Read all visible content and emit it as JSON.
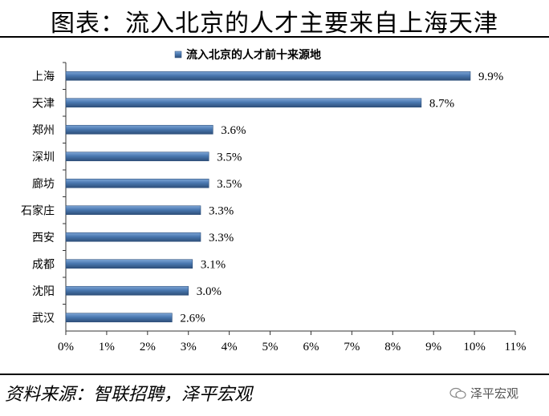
{
  "page_title": "图表：流入北京的人才主要来自上海天津",
  "source_note": "资料来源：智联招聘，泽平宏观",
  "watermark_text": "泽平宏观",
  "chart_data": {
    "type": "bar",
    "orientation": "horizontal",
    "title": "",
    "legend": {
      "entries": [
        "流入北京的人才前十来源地"
      ],
      "placement": "top-center"
    },
    "categories": [
      "上海",
      "天津",
      "郑州",
      "深圳",
      "廊坊",
      "石家庄",
      "西安",
      "成都",
      "沈阳",
      "武汉"
    ],
    "series": [
      {
        "name": "流入北京的人才前十来源地",
        "values": [
          9.9,
          8.7,
          3.6,
          3.5,
          3.5,
          3.3,
          3.3,
          3.1,
          3.0,
          2.6
        ],
        "data_labels": [
          "9.9%",
          "8.7%",
          "3.6%",
          "3.5%",
          "3.5%",
          "3.3%",
          "3.3%",
          "3.1%",
          "3.0%",
          "2.6%"
        ]
      }
    ],
    "xlim": [
      0,
      11
    ],
    "xticks": [
      "0%",
      "1%",
      "2%",
      "3%",
      "4%",
      "5%",
      "6%",
      "7%",
      "8%",
      "9%",
      "10%",
      "11%"
    ],
    "xlabel": "",
    "ylabel": "",
    "grid": false,
    "bar_color": "#4a78b0",
    "bar_edge_color": "#2e4f7a"
  }
}
